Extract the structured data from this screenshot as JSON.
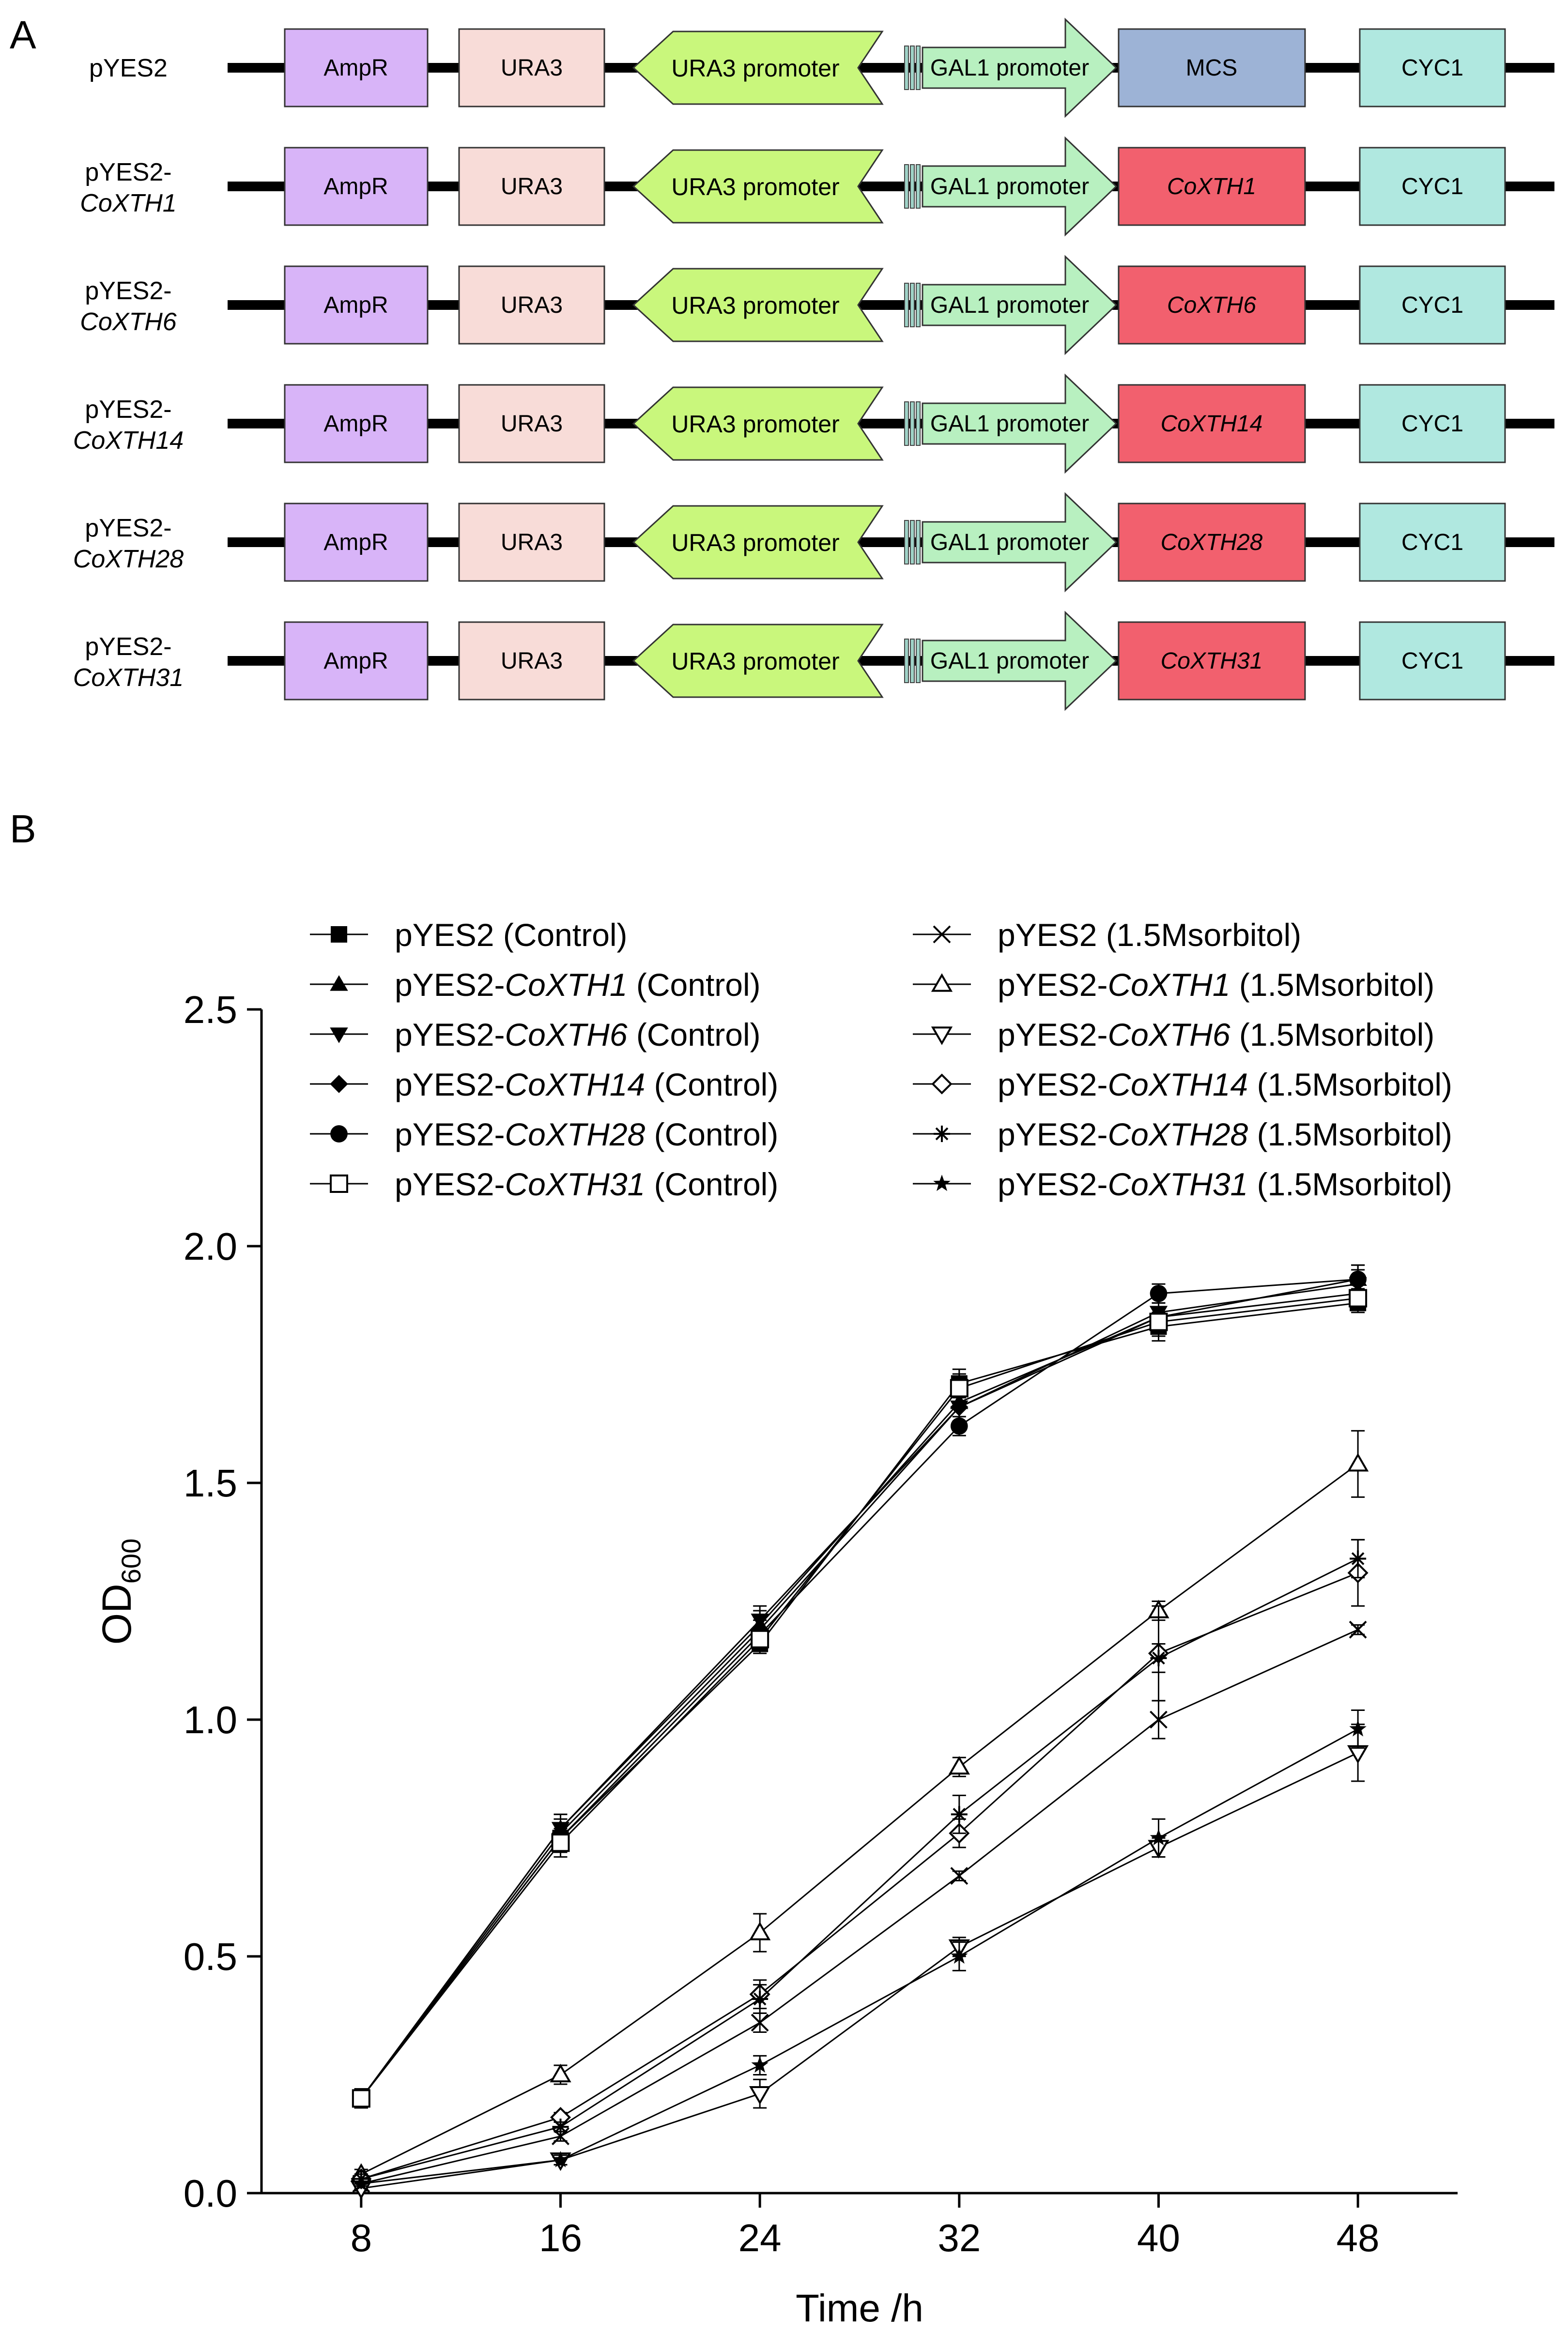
{
  "panel_a": {
    "label": "A",
    "constructs": [
      {
        "name": "pYES2",
        "name_italic": "",
        "insert": "MCS",
        "insert_italic": false,
        "insert_color": "#9db3d6"
      },
      {
        "name": "pYES2-",
        "name_italic": "CoXTH1",
        "insert": "CoXTH1",
        "insert_italic": true,
        "insert_color": "#f2606e"
      },
      {
        "name": "pYES2-",
        "name_italic": "CoXTH6",
        "insert": "CoXTH6",
        "insert_italic": true,
        "insert_color": "#f2606e"
      },
      {
        "name": "pYES2-",
        "name_italic": "CoXTH14",
        "insert": "CoXTH14",
        "insert_italic": true,
        "insert_color": "#f2606e"
      },
      {
        "name": "pYES2-",
        "name_italic": "CoXTH28",
        "insert": "CoXTH28",
        "insert_italic": true,
        "insert_color": "#f2606e"
      },
      {
        "name": "pYES2-",
        "name_italic": "CoXTH31",
        "insert": "CoXTH31",
        "insert_italic": true,
        "insert_color": "#f2606e"
      }
    ],
    "elements": {
      "ampr": {
        "label": "AmpR",
        "color": "#d8b4f8"
      },
      "ura3": {
        "label": "URA3",
        "color": "#f8dcd8"
      },
      "ura3_promoter": {
        "label": "URA3 promoter",
        "color": "#c9f77c"
      },
      "gal1_promoter": {
        "label": "GAL1 promoter",
        "color": "#b8f0c0"
      },
      "cyc1": {
        "label": "CYC1",
        "color": "#b0e8e0"
      }
    }
  },
  "panel_b": {
    "label": "B"
  },
  "chart_data": {
    "type": "line",
    "title": "",
    "xlabel": "Time /h",
    "ylabel": "OD",
    "ylabel_sub": "600",
    "x": [
      8,
      16,
      24,
      32,
      40,
      48
    ],
    "xlim": [
      4,
      52
    ],
    "ylim": [
      0,
      2.5
    ],
    "yticks": [
      "0.0",
      "0.5",
      "1.0",
      "1.5",
      "2.0",
      "2.5"
    ],
    "xticks": [
      "8",
      "16",
      "24",
      "32",
      "40",
      "48"
    ],
    "series": [
      {
        "name": "pYES2",
        "name_italic": "",
        "suffix": " (Control)",
        "marker": "square-filled",
        "values": [
          0.2,
          0.75,
          1.16,
          1.71,
          1.83,
          1.88
        ],
        "errors": [
          0.02,
          0.03,
          0.02,
          0.03,
          0.03,
          0.02
        ]
      },
      {
        "name": "pYES2-",
        "name_italic": "CoXTH1",
        "suffix": " (Control)",
        "marker": "triangle-up-filled",
        "values": [
          0.2,
          0.77,
          1.2,
          1.67,
          1.85,
          1.93
        ],
        "errors": [
          0.02,
          0.03,
          0.03,
          0.04,
          0.03,
          0.03
        ]
      },
      {
        "name": "pYES2-",
        "name_italic": "CoXTH6",
        "suffix": " (Control)",
        "marker": "triangle-down-filled",
        "values": [
          0.2,
          0.77,
          1.21,
          1.66,
          1.86,
          1.92
        ],
        "errors": [
          0.02,
          0.03,
          0.03,
          0.03,
          0.03,
          0.03
        ]
      },
      {
        "name": "pYES2-",
        "name_italic": "CoXTH14",
        "suffix": " (Control)",
        "marker": "diamond-filled",
        "values": [
          0.2,
          0.76,
          1.19,
          1.66,
          1.85,
          1.9
        ],
        "errors": [
          0.02,
          0.03,
          0.03,
          0.03,
          0.03,
          0.03
        ]
      },
      {
        "name": "pYES2-",
        "name_italic": "CoXTH28",
        "suffix": " (Control)",
        "marker": "circle-filled",
        "values": [
          0.2,
          0.75,
          1.18,
          1.62,
          1.9,
          1.93
        ],
        "errors": [
          0.02,
          0.03,
          0.03,
          0.02,
          0.02,
          0.03
        ]
      },
      {
        "name": "pYES2-",
        "name_italic": "CoXTH31",
        "suffix": " (Control)",
        "marker": "square-open",
        "values": [
          0.2,
          0.74,
          1.17,
          1.7,
          1.84,
          1.89
        ],
        "errors": [
          0.02,
          0.03,
          0.02,
          0.03,
          0.03,
          0.02
        ]
      },
      {
        "name": "pYES2",
        "name_italic": "",
        "suffix": " (1.5Msorbitol)",
        "marker": "cross",
        "values": [
          0.02,
          0.12,
          0.36,
          0.67,
          1.0,
          1.19
        ],
        "errors": [
          0.01,
          0.01,
          0.02,
          0.01,
          0.04,
          0.01
        ]
      },
      {
        "name": "pYES2-",
        "name_italic": "CoXTH1",
        "suffix": " (1.5Msorbitol)",
        "marker": "triangle-up-open",
        "values": [
          0.04,
          0.25,
          0.55,
          0.9,
          1.23,
          1.54
        ],
        "errors": [
          0.01,
          0.02,
          0.04,
          0.02,
          0.02,
          0.07
        ]
      },
      {
        "name": "pYES2-",
        "name_italic": "CoXTH6",
        "suffix": " (1.5Msorbitol)",
        "marker": "triangle-down-open",
        "values": [
          0.01,
          0.07,
          0.21,
          0.52,
          0.73,
          0.93
        ],
        "errors": [
          0.005,
          0.01,
          0.03,
          0.02,
          0.02,
          0.06
        ]
      },
      {
        "name": "pYES2-",
        "name_italic": "CoXTH14",
        "suffix": " (1.5Msorbitol)",
        "marker": "diamond-open",
        "values": [
          0.03,
          0.16,
          0.42,
          0.76,
          1.14,
          1.31
        ],
        "errors": [
          0.01,
          0.01,
          0.03,
          0.03,
          0.1,
          0.07
        ]
      },
      {
        "name": "pYES2-",
        "name_italic": "CoXTH28",
        "suffix": " (1.5Msorbitol)",
        "marker": "asterisk",
        "values": [
          0.03,
          0.14,
          0.41,
          0.8,
          1.13,
          1.34
        ],
        "errors": [
          0.01,
          0.01,
          0.03,
          0.04,
          0.03,
          0.04
        ]
      },
      {
        "name": "pYES2-",
        "name_italic": "CoXTH31",
        "suffix": " (1.5Msorbitol)",
        "marker": "star-filled",
        "values": [
          0.02,
          0.07,
          0.27,
          0.5,
          0.75,
          0.98
        ],
        "errors": [
          0.005,
          0.01,
          0.02,
          0.03,
          0.04,
          0.04
        ]
      }
    ]
  }
}
